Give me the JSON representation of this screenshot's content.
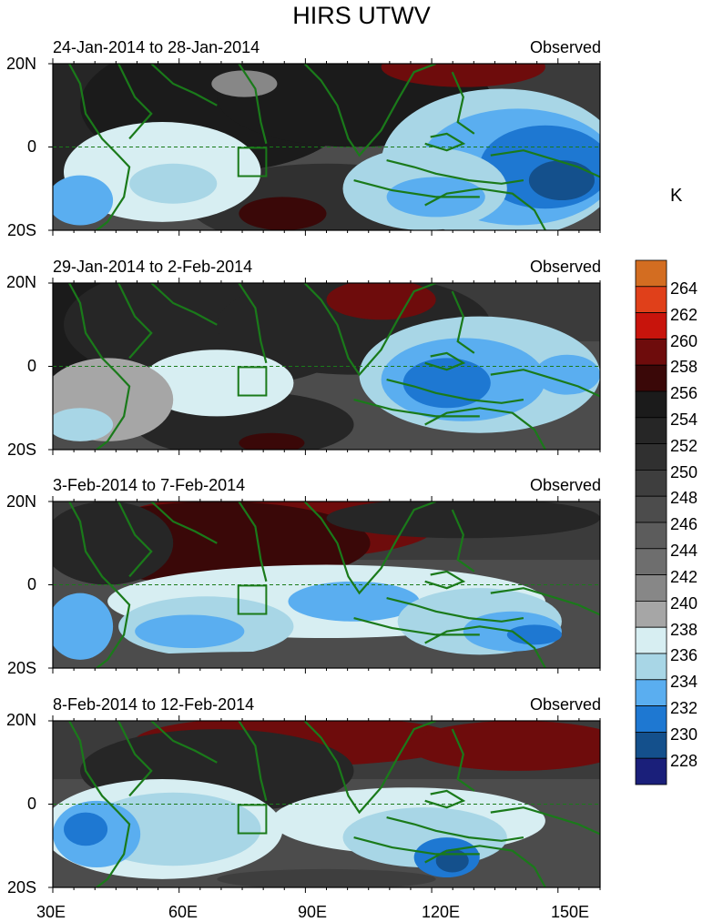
{
  "title": "HIRS UTWV",
  "panels": [
    {
      "date_range": "24-Jan-2014 to 28-Jan-2014",
      "label": "Observed"
    },
    {
      "date_range": "29-Jan-2014 to 2-Feb-2014",
      "label": "Observed"
    },
    {
      "date_range": "3-Feb-2014 to 7-Feb-2014",
      "label": "Observed"
    },
    {
      "date_range": "8-Feb-2014 to 12-Feb-2014",
      "label": "Observed"
    }
  ],
  "y_ticks": [
    "20N",
    "0",
    "20S"
  ],
  "x_ticks": [
    "30E",
    "60E",
    "90E",
    "120E",
    "150E"
  ],
  "colorbar": {
    "unit": "K",
    "labels": [
      "264",
      "262",
      "260",
      "258",
      "256",
      "254",
      "252",
      "250",
      "248",
      "246",
      "244",
      "242",
      "240",
      "238",
      "236",
      "234",
      "232",
      "230",
      "228"
    ],
    "colors": [
      "#d36d21",
      "#e0401a",
      "#c8140c",
      "#6e0c0c",
      "#3a0808",
      "#1b1b1b",
      "#262626",
      "#303030",
      "#3e3e3e",
      "#4c4c4c",
      "#5c5c5c",
      "#6e6e6e",
      "#878787",
      "#a6a6a6",
      "#d7eef2",
      "#a8d6e6",
      "#5aaef0",
      "#1e78d2",
      "#14508c",
      "#1a1f7a"
    ]
  },
  "colors": {
    "coastline": "#1a7a1a"
  }
}
